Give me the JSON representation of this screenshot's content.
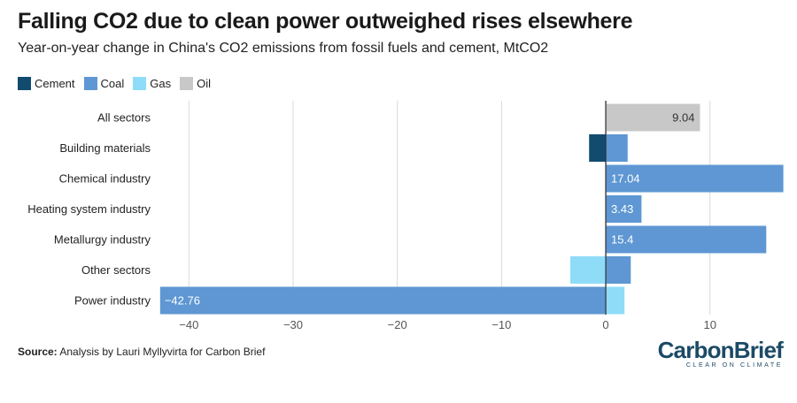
{
  "header": {
    "title": "Falling CO2 due to clean power outweighed rises elsewhere",
    "subtitle": "Year-on-year change in China's CO2 emissions from fossil fuels and cement, MtCO2"
  },
  "legend": [
    {
      "label": "Cement",
      "color": "#114b6e"
    },
    {
      "label": "Coal",
      "color": "#5e97d3"
    },
    {
      "label": "Gas",
      "color": "#8fdcf8"
    },
    {
      "label": "Oil",
      "color": "#c8c8c8"
    }
  ],
  "footer": {
    "source_label": "Source:",
    "source_text": " Analysis by Lauri Myllyvirta for Carbon Brief",
    "logo_main": "CarbonBrief",
    "logo_sub": "CLEAR ON CLIMATE"
  },
  "chart_data": {
    "type": "bar",
    "orientation": "horizontal",
    "stacked": true,
    "categories": [
      "All sectors",
      "Building materials",
      "Chemical industry",
      "Heating system industry",
      "Metallurgy industry",
      "Other sectors",
      "Power industry"
    ],
    "series": [
      {
        "name": "Cement",
        "color": "#114b6e",
        "values": [
          0,
          -1.6,
          0,
          0,
          0,
          0,
          0
        ]
      },
      {
        "name": "Coal",
        "color": "#5e97d3",
        "values": [
          0,
          2.1,
          17.04,
          3.43,
          15.4,
          2.4,
          -42.76
        ]
      },
      {
        "name": "Gas",
        "color": "#8fdcf8",
        "values": [
          0,
          0,
          0,
          0,
          0,
          -3.4,
          1.8
        ]
      },
      {
        "name": "Oil",
        "color": "#c8c8c8",
        "values": [
          9.04,
          0,
          0,
          0,
          0,
          0,
          0
        ]
      }
    ],
    "data_labels": [
      {
        "category": "All sectors",
        "series": "Oil",
        "text": "9.04"
      },
      {
        "category": "Chemical industry",
        "series": "Coal",
        "text": "17.04"
      },
      {
        "category": "Heating system industry",
        "series": "Coal",
        "text": "3.43"
      },
      {
        "category": "Metallurgy industry",
        "series": "Coal",
        "text": "15.4"
      },
      {
        "category": "Power industry",
        "series": "Coal",
        "text": "−42.76"
      }
    ],
    "xlim": [
      -43,
      17.5
    ],
    "xticks": [
      -40,
      -30,
      -20,
      -10,
      0,
      10
    ],
    "xtick_labels": [
      "−40",
      "−30",
      "−20",
      "−10",
      "0",
      "10"
    ],
    "grid": true,
    "legend_position": "top-left"
  }
}
